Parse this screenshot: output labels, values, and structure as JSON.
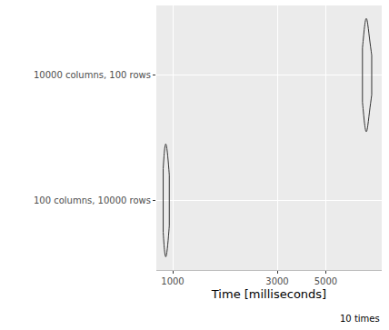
{
  "chart_data": {
    "type": "violin",
    "categories": [
      "100 columns, 10000 rows",
      "10000 columns, 100 rows"
    ],
    "values": [
      [
        905,
        912,
        918,
        925,
        930,
        934,
        940,
        948,
        955,
        965
      ],
      [
        7350,
        7450,
        7550,
        7600,
        7650,
        7700,
        7750,
        7850,
        7950,
        8100
      ]
    ],
    "x_label": "Time [milliseconds]",
    "caption": "10 times",
    "xlim": [
      842,
      9000
    ],
    "xticks": [
      1000,
      3000,
      5000
    ],
    "log": "x",
    "grid": true,
    "orientation": "horizontal",
    "color": "#333333"
  }
}
